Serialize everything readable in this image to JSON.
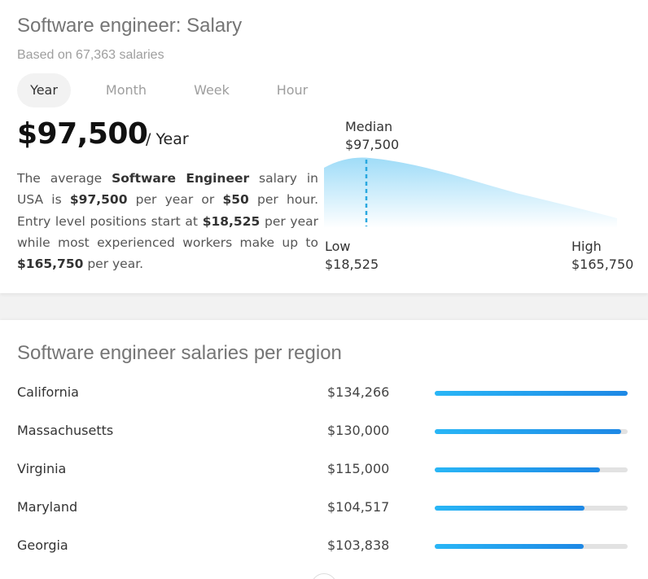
{
  "header": {
    "title": "Software engineer: Salary",
    "subtitle": "Based on 67,363 salaries"
  },
  "tabs": [
    {
      "label": "Year",
      "active": true
    },
    {
      "label": "Month",
      "active": false
    },
    {
      "label": "Week",
      "active": false
    },
    {
      "label": "Hour",
      "active": false
    }
  ],
  "salary": {
    "amount": "$97,500",
    "unit": "/ Year"
  },
  "description": {
    "p1": "The average ",
    "job": "Software Engineer",
    "p2": " salary in USA is ",
    "annual": "$97,500",
    "p3": " per year or ",
    "hourly": "$50",
    "p4": " per hour. Entry level positions start at ",
    "entry": "$18,525",
    "p5": " per year while most experienced workers make up to ",
    "top": "$165,750",
    "p6": " per year."
  },
  "distribution": {
    "median_label": "Median",
    "median_value": "$97,500",
    "low_label": "Low",
    "low_value": "$18,525",
    "high_label": "High",
    "high_value": "$165,750",
    "colors": {
      "curve": "#b3e5fc",
      "median_line": "#29a8e0"
    }
  },
  "regions": {
    "title": "Software engineer salaries per region",
    "rows": [
      {
        "name": "California",
        "salary": "$134,266",
        "fill": 1.0
      },
      {
        "name": "Massachusetts",
        "salary": "$130,000",
        "fill": 0.968
      },
      {
        "name": "Virginia",
        "salary": "$115,000",
        "fill": 0.857
      },
      {
        "name": "Maryland",
        "salary": "$104,517",
        "fill": 0.778
      },
      {
        "name": "Georgia",
        "salary": "$103,838",
        "fill": 0.773
      }
    ]
  },
  "colors": {
    "bar_start": "#29b6f6",
    "bar_end": "#1e88e5",
    "track": "#e2e2e2"
  }
}
